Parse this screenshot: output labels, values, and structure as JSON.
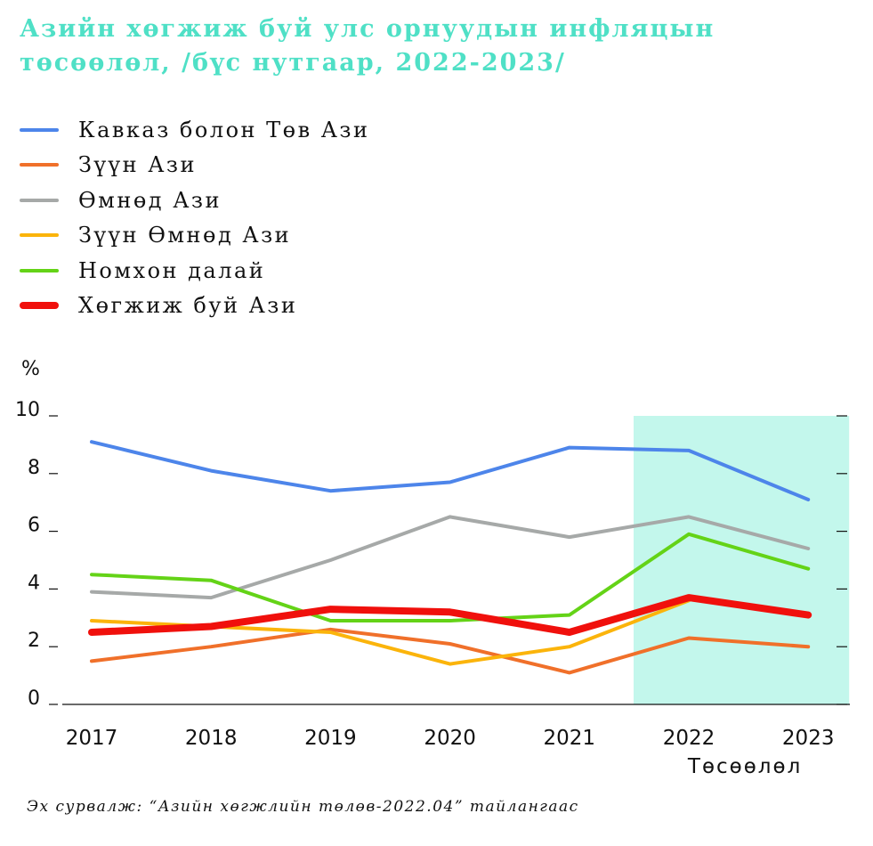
{
  "title_line1": "Азийн хөгжиж буй улс орнуудын инфляцын",
  "title_line2": "төсөөлөл, /бүс нутгаар, 2022-2023/",
  "source": "Эх сурвалж: “Азийн хөгжлийн төлөв-2022.04” тайлангаас",
  "chart_data": {
    "type": "line",
    "title": "Азийн хөгжиж буй улс орнуудын инфляцын төсөөлөл, /бүс нутгаар, 2022-2023/",
    "ylabel": "%",
    "xlabel": "",
    "categories": [
      "2017",
      "2018",
      "2019",
      "2020",
      "2021",
      "2022",
      "2023"
    ],
    "forecast_label": "Төсөөлөл",
    "forecast_range": [
      "2022",
      "2023"
    ],
    "forecast_color": "#c3f7ec",
    "ylim": [
      0,
      10
    ],
    "yticks": [
      "0",
      "2",
      "4",
      "6",
      "8",
      "10"
    ],
    "legend_position": "top-left",
    "series": [
      {
        "name": "Кавказ болон Төв Ази",
        "color": "#4d85ea",
        "width": 4,
        "values": [
          9.1,
          8.1,
          7.4,
          7.7,
          8.9,
          8.8,
          7.1
        ]
      },
      {
        "name": "Зүүн Ази",
        "color": "#f0702a",
        "width": 4,
        "values": [
          1.5,
          2.0,
          2.6,
          2.1,
          1.1,
          2.3,
          2.0
        ]
      },
      {
        "name": "Өмнөд Ази",
        "color": "#a6a9a8",
        "width": 4,
        "values": [
          3.9,
          3.7,
          5.0,
          6.5,
          5.8,
          6.5,
          5.4
        ]
      },
      {
        "name": "Зүүн Өмнөд Ази",
        "color": "#fbb40b",
        "width": 4,
        "values": [
          2.9,
          2.7,
          2.5,
          1.4,
          2.0,
          3.6,
          null
        ]
      },
      {
        "name": "Номхон далай",
        "color": "#64d317",
        "width": 4,
        "values": [
          4.5,
          4.3,
          2.9,
          2.9,
          3.1,
          5.9,
          4.7
        ]
      },
      {
        "name": "Хөгжиж буй Ази",
        "color": "#f0100c",
        "width": 8,
        "values": [
          2.5,
          2.7,
          3.3,
          3.2,
          2.5,
          3.7,
          3.1
        ]
      }
    ]
  }
}
